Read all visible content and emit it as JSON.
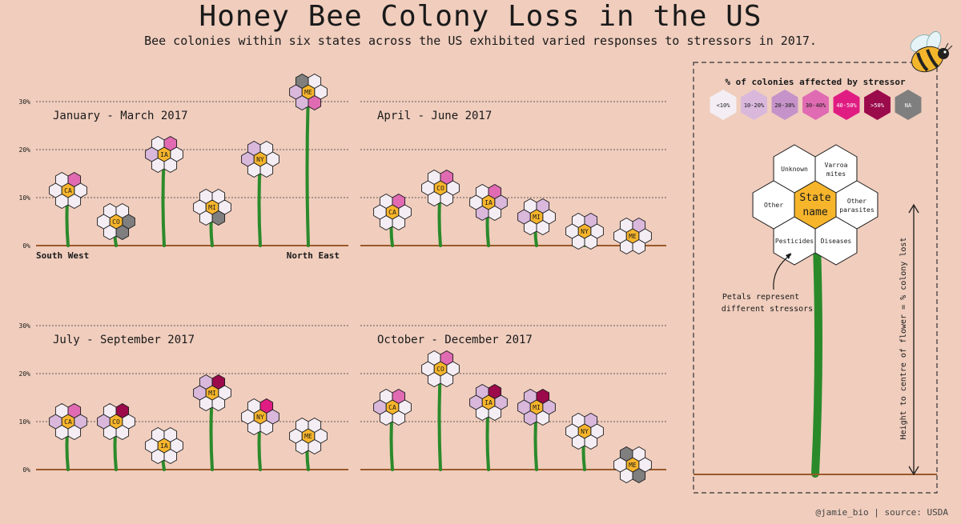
{
  "title": "Honey Bee Colony Loss in the US",
  "subtitle": "Bee colonies within six states across the US exhibited varied responses to stressors in 2017.",
  "credit": "@jamie_bio | source: USDA",
  "colors": {
    "background": "#f0cdbd",
    "stem": "#2a8a2a",
    "ground": "#9a5a2a",
    "center": "#f7b52c",
    "scale": {
      "<10%": "#f4eef4",
      "10-20%": "#d9b8dc",
      "20-30%": "#c593c9",
      "30-40%": "#e06bb2",
      "40-50%": "#e01c82",
      "&gt;50%": "#9b0a4b",
      ">50%": "#9b0a4b",
      "NA": "#7f7f7f"
    }
  },
  "chart_data": {
    "type": "scatter",
    "description_units": "y = percent of colonies lost (height to flower centre); petals = % colonies affected by stressor category",
    "y_ticks": [
      "0%",
      "10%",
      "20%",
      "30%"
    ],
    "ylim": [
      0,
      30
    ],
    "x_labels": {
      "left": "South West",
      "right": "North East"
    },
    "petal_order": [
      "Unknown",
      "Varroa mites",
      "Other parasites",
      "Diseases",
      "Pesticides",
      "Other"
    ],
    "legend": {
      "title": "% of colonies affected by stressor",
      "items": [
        "<10%",
        "10-20%",
        "20-30%",
        "30-40%",
        "40-50%",
        ">50%",
        "NA"
      ]
    },
    "key": {
      "center_label_1": "State",
      "center_label_2": "name",
      "petals": {
        "Unknown": "Unknown",
        "Varroa": "Varroa",
        "Varroa2": "mites",
        "Other parasites 1": "Other",
        "Other parasites 2": "parasites",
        "Diseases": "Diseases",
        "Pesticides": "Pesticides",
        "Other": "Other"
      },
      "note_1": "Petals represent",
      "note_2": "different stressors",
      "axis_label": "Height to centre of flower = % colony lost"
    },
    "panels": [
      {
        "title": "January - March 2017",
        "states": [
          {
            "state": "CA",
            "loss": 11.5,
            "petals": [
              "<10%",
              "30-40%",
              "<10%",
              "<10%",
              "<10%",
              "<10%"
            ]
          },
          {
            "state": "CO",
            "loss": 5,
            "petals": [
              "<10%",
              "<10%",
              "NA",
              "NA",
              "<10%",
              "<10%"
            ]
          },
          {
            "state": "IA",
            "loss": 19,
            "petals": [
              "<10%",
              "30-40%",
              "<10%",
              "<10%",
              "<10%",
              "10-20%"
            ]
          },
          {
            "state": "MI",
            "loss": 8,
            "petals": [
              "<10%",
              "<10%",
              "<10%",
              "NA",
              "<10%",
              "<10%"
            ]
          },
          {
            "state": "NY",
            "loss": 18,
            "petals": [
              "10-20%",
              "<10%",
              "<10%",
              "<10%",
              "<10%",
              "10-20%"
            ]
          },
          {
            "state": "ME",
            "loss": 32,
            "petals": [
              "NA",
              "<10%",
              "<10%",
              "30-40%",
              "10-20%",
              "10-20%"
            ]
          }
        ]
      },
      {
        "title": "April - June 2017",
        "states": [
          {
            "state": "CA",
            "loss": 7,
            "petals": [
              "<10%",
              "30-40%",
              "<10%",
              "<10%",
              "<10%",
              "<10%"
            ]
          },
          {
            "state": "CO",
            "loss": 12,
            "petals": [
              "<10%",
              "30-40%",
              "<10%",
              "<10%",
              "<10%",
              "<10%"
            ]
          },
          {
            "state": "IA",
            "loss": 9,
            "petals": [
              "<10%",
              "30-40%",
              "10-20%",
              "<10%",
              "10-20%",
              "<10%"
            ]
          },
          {
            "state": "MI",
            "loss": 6,
            "petals": [
              "<10%",
              "10-20%",
              "<10%",
              "<10%",
              "<10%",
              "10-20%"
            ]
          },
          {
            "state": "NY",
            "loss": 3,
            "petals": [
              "<10%",
              "10-20%",
              "<10%",
              "<10%",
              "<10%",
              "<10%"
            ]
          },
          {
            "state": "ME",
            "loss": 2,
            "petals": [
              "<10%",
              "10-20%",
              "<10%",
              "<10%",
              "<10%",
              "<10%"
            ]
          }
        ]
      },
      {
        "title": "July - September 2017",
        "states": [
          {
            "state": "CA",
            "loss": 10,
            "petals": [
              "<10%",
              "30-40%",
              "10-20%",
              "<10%",
              "<10%",
              "10-20%"
            ]
          },
          {
            "state": "CO",
            "loss": 10,
            "petals": [
              "<10%",
              ">50%",
              "<10%",
              "<10%",
              "<10%",
              "10-20%"
            ]
          },
          {
            "state": "IA",
            "loss": 5,
            "petals": [
              "<10%",
              "<10%",
              "<10%",
              "<10%",
              "<10%",
              "<10%"
            ]
          },
          {
            "state": "MI",
            "loss": 16,
            "petals": [
              "10-20%",
              ">50%",
              "<10%",
              "<10%",
              "<10%",
              "10-20%"
            ]
          },
          {
            "state": "NY",
            "loss": 11,
            "petals": [
              "<10%",
              "40-50%",
              "10-20%",
              "<10%",
              "<10%",
              "<10%"
            ]
          },
          {
            "state": "ME",
            "loss": 7,
            "petals": [
              "<10%",
              "<10%",
              "<10%",
              "<10%",
              "<10%",
              "<10%"
            ]
          }
        ]
      },
      {
        "title": "October - December 2017",
        "states": [
          {
            "state": "CA",
            "loss": 13,
            "petals": [
              "<10%",
              "30-40%",
              "<10%",
              "<10%",
              "<10%",
              "10-20%"
            ]
          },
          {
            "state": "CO",
            "loss": 21,
            "petals": [
              "<10%",
              "30-40%",
              "<10%",
              "<10%",
              "<10%",
              "<10%"
            ]
          },
          {
            "state": "IA",
            "loss": 14,
            "petals": [
              "10-20%",
              ">50%",
              "10-20%",
              "<10%",
              "<10%",
              "10-20%"
            ]
          },
          {
            "state": "MI",
            "loss": 13,
            "petals": [
              "10-20%",
              ">50%",
              "10-20%",
              "<10%",
              "10-20%",
              "10-20%"
            ]
          },
          {
            "state": "NY",
            "loss": 8,
            "petals": [
              "<10%",
              "10-20%",
              "<10%",
              "<10%",
              "<10%",
              "<10%"
            ]
          },
          {
            "state": "ME",
            "loss": 1,
            "petals": [
              "NA",
              "<10%",
              "<10%",
              "NA",
              "<10%",
              "<10%"
            ]
          }
        ]
      }
    ]
  }
}
